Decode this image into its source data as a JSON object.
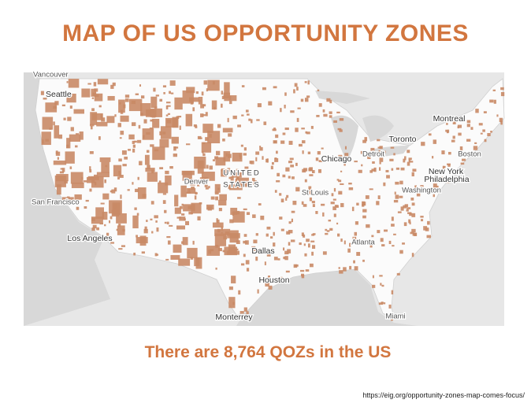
{
  "header": {
    "title": "MAP OF US OPPORTUNITY ZONES"
  },
  "map": {
    "labels": [
      "Vancouver",
      "Seattle",
      "Montreal",
      "Toronto",
      "Boston",
      "Chicago",
      "Detroit",
      "New York",
      "Philadelphia",
      "Washington",
      "San Francisco",
      "Denver",
      "UNITED",
      "STATES",
      "St Louis",
      "Los Angeles",
      "Dallas",
      "Atlanta",
      "Houston",
      "Monterrey",
      "Miami"
    ]
  },
  "caption": "There are 8,764 QOZs in the US",
  "source": "https://eig.org/opportunity-zones-map-comes-focus/"
}
